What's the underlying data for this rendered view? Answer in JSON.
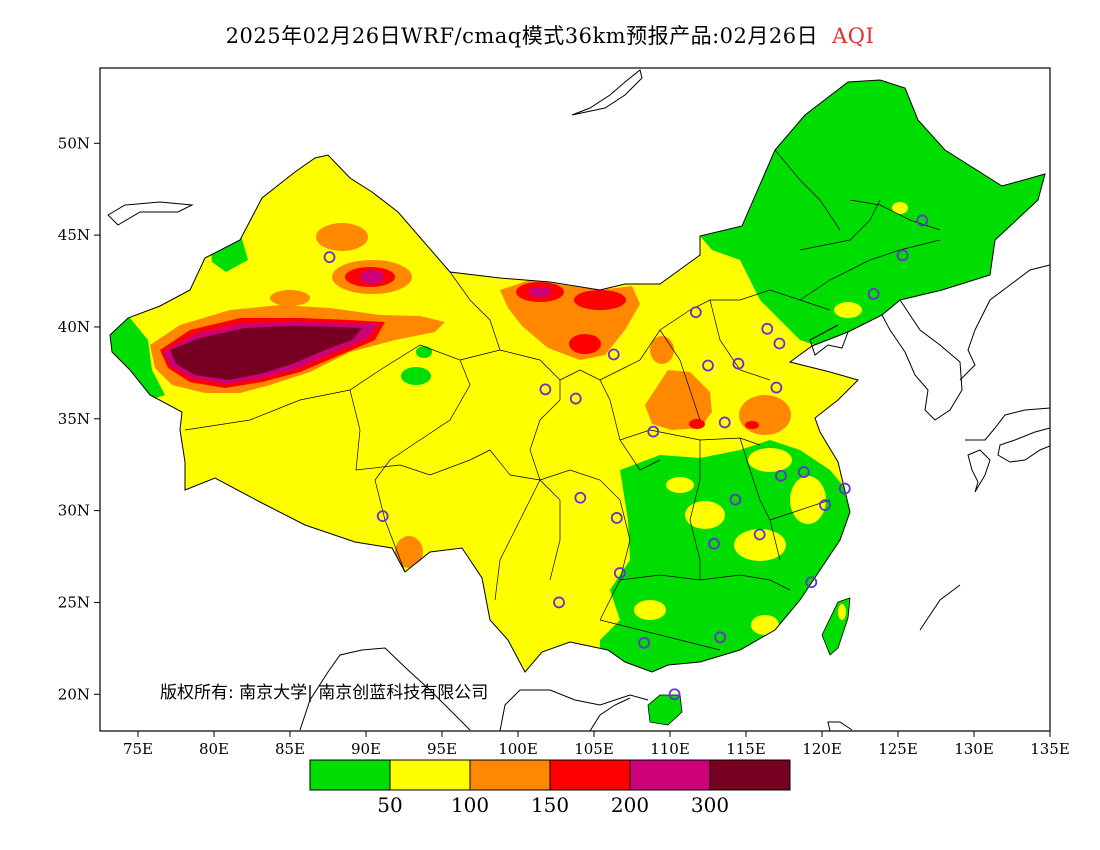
{
  "title": {
    "main": "2025年02月26日WRF/cmaq模式36km预报产品:02月26日",
    "variable": "AQI"
  },
  "copyright": "版权所有: 南京大学| 南京创蓝科技有限公司",
  "axes": {
    "lon_labels": [
      "75E",
      "80E",
      "85E",
      "90E",
      "95E",
      "100E",
      "105E",
      "110E",
      "115E",
      "120E",
      "125E",
      "130E",
      "135E"
    ],
    "lat_labels": [
      "50N",
      "45N",
      "40N",
      "35N",
      "30N",
      "25N",
      "20N"
    ]
  },
  "legend": {
    "colors": [
      "#00dd00",
      "#ffff00",
      "#ff8800",
      "#ff0000",
      "#cc0077",
      "#770022"
    ],
    "labels": [
      "50",
      "100",
      "150",
      "200",
      "300"
    ]
  },
  "stations": [
    {
      "lon": 87.6,
      "lat": 43.8
    },
    {
      "lon": 91.1,
      "lat": 29.7
    },
    {
      "lon": 101.8,
      "lat": 36.6
    },
    {
      "lon": 103.8,
      "lat": 36.1
    },
    {
      "lon": 106.3,
      "lat": 38.5
    },
    {
      "lon": 111.7,
      "lat": 40.8
    },
    {
      "lon": 112.5,
      "lat": 37.9
    },
    {
      "lon": 116.4,
      "lat": 39.9
    },
    {
      "lon": 117.2,
      "lat": 39.1
    },
    {
      "lon": 114.5,
      "lat": 38.0
    },
    {
      "lon": 117.0,
      "lat": 36.7
    },
    {
      "lon": 113.6,
      "lat": 34.8
    },
    {
      "lon": 108.9,
      "lat": 34.3
    },
    {
      "lon": 104.1,
      "lat": 30.7
    },
    {
      "lon": 106.5,
      "lat": 29.6
    },
    {
      "lon": 106.7,
      "lat": 26.6
    },
    {
      "lon": 102.7,
      "lat": 25.0
    },
    {
      "lon": 108.3,
      "lat": 22.8
    },
    {
      "lon": 113.3,
      "lat": 23.1
    },
    {
      "lon": 110.3,
      "lat": 20.0
    },
    {
      "lon": 112.9,
      "lat": 28.2
    },
    {
      "lon": 115.9,
      "lat": 28.7
    },
    {
      "lon": 114.3,
      "lat": 30.6
    },
    {
      "lon": 117.3,
      "lat": 31.9
    },
    {
      "lon": 118.8,
      "lat": 32.1
    },
    {
      "lon": 120.2,
      "lat": 30.3
    },
    {
      "lon": 121.5,
      "lat": 31.2
    },
    {
      "lon": 119.3,
      "lat": 26.1
    },
    {
      "lon": 123.4,
      "lat": 41.8
    },
    {
      "lon": 125.3,
      "lat": 43.9
    },
    {
      "lon": 126.6,
      "lat": 45.8
    }
  ]
}
